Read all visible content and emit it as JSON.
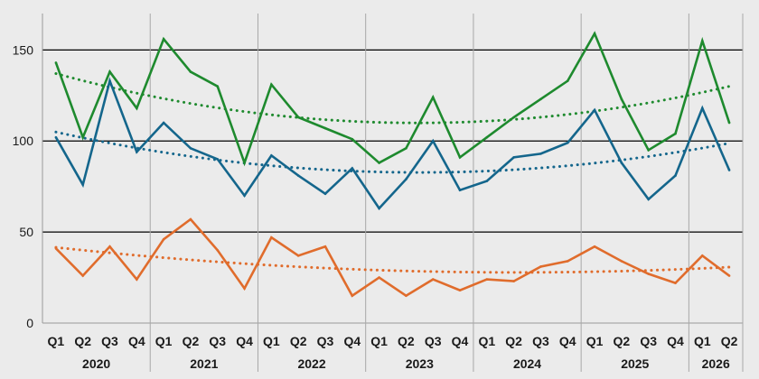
{
  "chart_data": {
    "type": "line",
    "title": "",
    "xlabel": "",
    "ylabel": "",
    "ylim": [
      0,
      170
    ],
    "yticks": [
      0,
      50,
      100,
      150
    ],
    "grid": "horizontal major lines at y ticks; vertical separators between years",
    "legend": "none",
    "categories": [
      "Q1",
      "Q2",
      "Q3",
      "Q4",
      "Q1",
      "Q2",
      "Q3",
      "Q4",
      "Q1",
      "Q2",
      "Q3",
      "Q4",
      "Q1",
      "Q2",
      "Q3",
      "Q4",
      "Q1",
      "Q2",
      "Q3",
      "Q4",
      "Q1",
      "Q2",
      "Q3",
      "Q4",
      "Q1",
      "Q2"
    ],
    "year_groups": [
      {
        "label": "2020",
        "start": 0,
        "end": 3
      },
      {
        "label": "2021",
        "start": 4,
        "end": 7
      },
      {
        "label": "2022",
        "start": 8,
        "end": 11
      },
      {
        "label": "2023",
        "start": 12,
        "end": 15
      },
      {
        "label": "2024",
        "start": 16,
        "end": 19
      },
      {
        "label": "2025",
        "start": 20,
        "end": 23
      },
      {
        "label": "2026",
        "start": 24,
        "end": 25
      }
    ],
    "series": [
      {
        "color": "#1e8a2e",
        "trendline": "polynomial (dotted)",
        "values": [
          143,
          102,
          138,
          118,
          156,
          138,
          130,
          88,
          131,
          113,
          107,
          101,
          88,
          96,
          124,
          91,
          102,
          113,
          123,
          133,
          159,
          123,
          95,
          104,
          155,
          110
        ]
      },
      {
        "color": "#14668c",
        "trendline": "polynomial (dotted)",
        "values": [
          102,
          76,
          133,
          94,
          110,
          96,
          90,
          70,
          92,
          81,
          71,
          85,
          63,
          79,
          100,
          73,
          78,
          91,
          93,
          99,
          117,
          88,
          68,
          81,
          118,
          84
        ]
      },
      {
        "color": "#e06c2c",
        "trendline": "polynomial (dotted)",
        "values": [
          41,
          26,
          42,
          24,
          46,
          57,
          40,
          19,
          47,
          37,
          42,
          15,
          25,
          15,
          24,
          18,
          24,
          23,
          31,
          34,
          42,
          34,
          27,
          22,
          37,
          26
        ]
      }
    ]
  }
}
